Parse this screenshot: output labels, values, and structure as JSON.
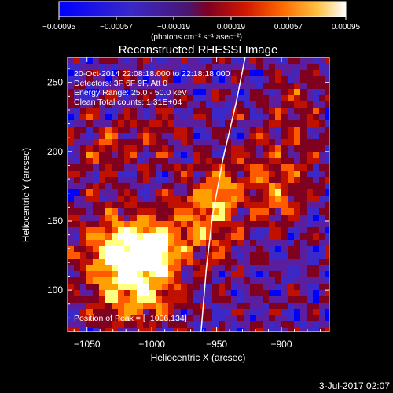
{
  "chart_data": {
    "type": "heatmap",
    "title": "Reconstructed RHESSI Image",
    "xlabel": "Heliocentric X (arcsec)",
    "ylabel": "Heliocentric Y (arcsec)",
    "xlim": [
      -1065,
      -863
    ],
    "ylim": [
      70,
      268
    ],
    "x_ticks": [
      -1050,
      -1000,
      -950,
      -900
    ],
    "x_tick_labels": [
      "−1050",
      "−1000",
      "−950",
      "−900"
    ],
    "y_ticks": [
      100,
      150,
      200,
      250
    ],
    "y_tick_labels": [
      "100",
      "150",
      "200",
      "250"
    ],
    "info_lines": [
      "20-Oct-2014 22:08:18.000 to 22:18:18.000",
      "Detectors: 3F 6F 9F, Att 0",
      "Energy Range: 25.0 - 50.0 keV",
      "Clean     Total counts: 1.31E+04"
    ],
    "peak_label": "Position of Peak = [−1006,134]",
    "peak_position": [
      -1006,
      134
    ],
    "colorbar": {
      "min": -0.00095,
      "max": 0.00095,
      "tick_values": [
        -0.00095,
        -0.00057,
        -0.00019,
        0.00019,
        0.00057,
        0.00095
      ],
      "tick_labels": [
        "−0.00095",
        "−0.00057",
        "−0.00019",
        "0.00019",
        "0.00057",
        "0.00095"
      ],
      "unit_label": "(photons cm⁻² s⁻¹ asec⁻²)",
      "colors": [
        "#0000ff",
        "#3a28c8",
        "#5a1e9e",
        "#800020",
        "#c01000",
        "#ff5a00",
        "#ffa000",
        "#ffff80",
        "#ffffff"
      ]
    },
    "limb_curve": [
      [
        -962,
        70
      ],
      [
        -958,
        115
      ],
      [
        -953,
        155
      ],
      [
        -945,
        195
      ],
      [
        -935,
        235
      ],
      [
        -928,
        268
      ]
    ],
    "grid": false,
    "legend": "none"
  },
  "timestamp": "3-Jul-2017 02:07"
}
